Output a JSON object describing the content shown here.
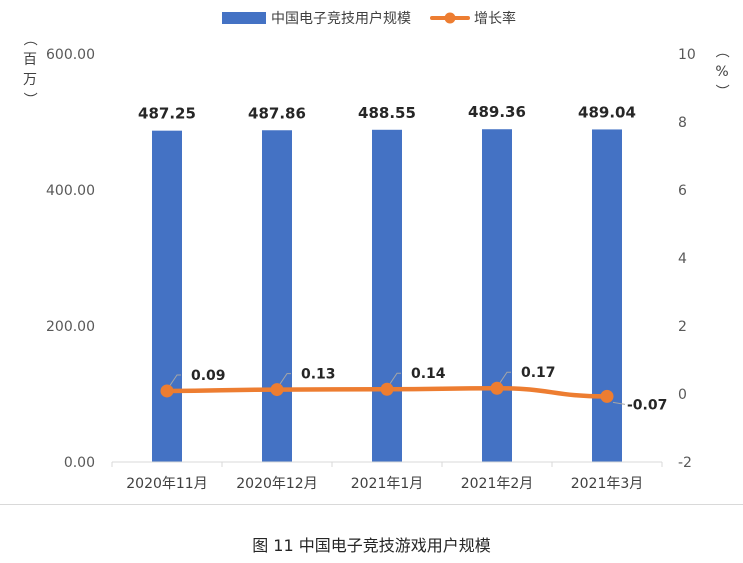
{
  "caption": "图 11  中国电子竞技游戏用户规模",
  "chart_data": {
    "type": "bar",
    "categories": [
      "2020年11月",
      "2020年12月",
      "2021年1月",
      "2021年2月",
      "2021年3月"
    ],
    "series": [
      {
        "name": "中国电子竞技用户规模",
        "type": "bar",
        "axis": "left",
        "color": "#4472C4",
        "values": [
          487.25,
          487.86,
          488.55,
          489.36,
          489.04
        ],
        "labels": [
          "487.25",
          "487.86",
          "488.55",
          "489.36",
          "489.04"
        ]
      },
      {
        "name": "增长率",
        "type": "line",
        "axis": "right",
        "color": "#ED7D31",
        "values": [
          0.09,
          0.13,
          0.14,
          0.17,
          -0.07
        ],
        "labels": [
          "0.09",
          "0.13",
          "0.14",
          "0.17",
          "-0.07"
        ]
      }
    ],
    "y_left": {
      "label": "（百万）",
      "lim": [
        0,
        600
      ],
      "ticks": [
        0,
        200,
        400,
        600
      ],
      "tick_labels": [
        "0.00",
        "200.00",
        "400.00",
        "600.00"
      ]
    },
    "y_right": {
      "label": "（%）",
      "lim": [
        -2,
        10
      ],
      "ticks": [
        -2,
        0,
        2,
        4,
        6,
        8,
        10
      ],
      "tick_labels": [
        "-2",
        "0",
        "2",
        "4",
        "6",
        "8",
        "10"
      ]
    },
    "legend": "top-center",
    "grid": false
  }
}
